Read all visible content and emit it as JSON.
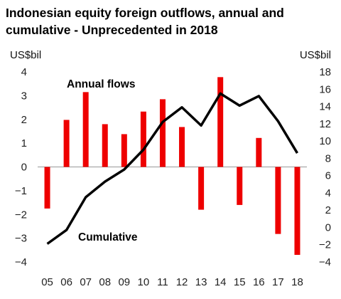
{
  "chart_data": {
    "type": "bar",
    "title": "Indonesian equity foreign outflows, annual and cumulative - Unprecedented in 2018",
    "left_axis_unit": "US$bil",
    "right_axis_unit": "US$bil",
    "categories": [
      "05",
      "06",
      "07",
      "08",
      "09",
      "10",
      "11",
      "12",
      "13",
      "14",
      "15",
      "16",
      "17",
      "18"
    ],
    "left_axis": {
      "min": -4,
      "max": 4,
      "ticks": [
        -4,
        -3,
        -2,
        -1,
        0,
        1,
        2,
        3,
        4
      ]
    },
    "right_axis": {
      "min": -4,
      "max": 18,
      "ticks": [
        -4,
        -2,
        0,
        2,
        4,
        6,
        8,
        10,
        12,
        14,
        16,
        18
      ]
    },
    "grid": false,
    "series": [
      {
        "name": "Annual flows",
        "type": "bar",
        "axis": "left",
        "color": "#ee0000",
        "values": [
          -1.75,
          1.98,
          3.15,
          1.8,
          1.38,
          2.33,
          2.85,
          1.68,
          -1.8,
          3.78,
          -1.6,
          1.22,
          -2.82,
          -3.7
        ]
      },
      {
        "name": "Cumulative",
        "type": "line",
        "axis": "right",
        "color": "#000000",
        "values": [
          -1.9,
          -0.3,
          3.5,
          5.3,
          6.7,
          9.0,
          12.2,
          13.9,
          11.8,
          15.5,
          14.1,
          15.2,
          12.3,
          8.6
        ]
      }
    ],
    "annotations": [
      "Annual flows",
      "Cumulative"
    ]
  }
}
